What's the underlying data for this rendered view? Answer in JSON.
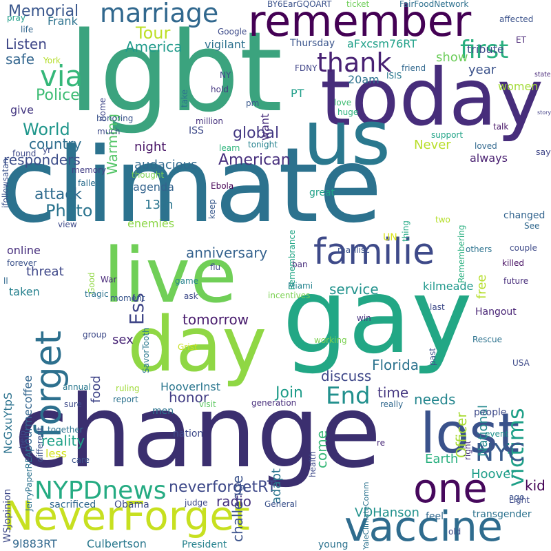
{
  "words": [
    {
      "text": "climate",
      "color": "#2c728e"
    },
    {
      "text": "change",
      "color": "#3b2f6f"
    },
    {
      "text": "lgbt",
      "color": "#3ba37e"
    },
    {
      "text": "gay",
      "color": "#22a785"
    },
    {
      "text": "today",
      "color": "#472d7b"
    },
    {
      "text": "day",
      "color": "#8fd744"
    },
    {
      "text": "live",
      "color": "#70cf57"
    },
    {
      "text": "us",
      "color": "#2a788e"
    },
    {
      "text": "remember",
      "color": "#440154"
    },
    {
      "text": "NeverForget",
      "color": "#c7e020"
    },
    {
      "text": "vaccine",
      "color": "#2f6c8e"
    },
    {
      "text": "lost",
      "color": "#3a528b"
    },
    {
      "text": "familie",
      "color": "#3e4a89"
    },
    {
      "text": "forget",
      "color": "#2d708e"
    },
    {
      "text": "one",
      "color": "#46085c"
    },
    {
      "text": "marriage",
      "color": "#31688e"
    },
    {
      "text": "thank",
      "color": "#482173"
    },
    {
      "text": "via",
      "color": "#35b779"
    },
    {
      "text": "first",
      "color": "#29af7f"
    },
    {
      "text": "NYPDnews",
      "color": "#25ab82"
    },
    {
      "text": "victims",
      "color": "#1fa088"
    },
    {
      "text": "End",
      "color": "#21908d"
    },
    {
      "text": "NYC",
      "color": "#375a8c"
    },
    {
      "text": "neverforgetRT",
      "color": "#3e4989"
    },
    {
      "text": "Ess",
      "color": "#404688"
    },
    {
      "text": "Memorial",
      "color": "#39568c"
    },
    {
      "text": "Tour",
      "color": "#bddf26"
    },
    {
      "text": "America",
      "color": "#1f9a8a"
    },
    {
      "text": "Listen",
      "color": "#3f4788"
    },
    {
      "text": "safe",
      "color": "#32658e"
    },
    {
      "text": "Police",
      "color": "#3dbc74"
    },
    {
      "text": "Warming",
      "color": "#54c568"
    },
    {
      "text": "World",
      "color": "#1f968b"
    },
    {
      "text": "country",
      "color": "#2e6e8e"
    },
    {
      "text": "responders",
      "color": "#3d4e8a"
    },
    {
      "text": "attack",
      "color": "#2f6b8e"
    },
    {
      "text": "Photo",
      "color": "#2b748e"
    },
    {
      "text": "global",
      "color": "#443983"
    },
    {
      "text": "night",
      "color": "#471365"
    },
    {
      "text": "audacious",
      "color": "#306a8e"
    },
    {
      "text": "American",
      "color": "#472f7d"
    },
    {
      "text": "agenda",
      "color": "#33638d"
    },
    {
      "text": "13th",
      "color": "#2b758e"
    },
    {
      "text": "enemies",
      "color": "#8bd646"
    },
    {
      "text": "anniversary",
      "color": "#34618d"
    },
    {
      "text": "service",
      "color": "#20928c"
    },
    {
      "text": "tomorrow",
      "color": "#481b6d"
    },
    {
      "text": "honor",
      "color": "#433e85"
    },
    {
      "text": "sex",
      "color": "#482576"
    },
    {
      "text": "food",
      "color": "#404588"
    },
    {
      "text": "discuss",
      "color": "#3f4889"
    },
    {
      "text": "Florida",
      "color": "#2c738e"
    },
    {
      "text": "HooverInst",
      "color": "#2a768e"
    },
    {
      "text": "Join",
      "color": "#1e9c89"
    },
    {
      "text": "time",
      "color": "#453781"
    },
    {
      "text": "needs",
      "color": "#24868e"
    },
    {
      "text": "come",
      "color": "#37b878"
    },
    {
      "text": "challenge",
      "color": "#3b528b"
    },
    {
      "text": "reality",
      "color": "#1fa187"
    },
    {
      "text": "less",
      "color": "#d2e21b"
    },
    {
      "text": "adapt",
      "color": "#2b758e"
    },
    {
      "text": "radio",
      "color": "#46327e"
    },
    {
      "text": "kid",
      "color": "#440154"
    },
    {
      "text": "Hoover",
      "color": "#1f9e89"
    },
    {
      "text": "Earth",
      "color": "#2ab07f"
    },
    {
      "text": "VDHanson",
      "color": "#21918c"
    },
    {
      "text": "Culbertson",
      "color": "#2a788e"
    },
    {
      "text": "9l883RT",
      "color": "#31688e"
    },
    {
      "text": "Officer",
      "color": "#a8db34"
    },
    {
      "text": "National",
      "color": "#23888e"
    },
    {
      "text": "kilmeade",
      "color": "#1f988b"
    },
    {
      "text": "free",
      "color": "#b5de2b"
    },
    {
      "text": "year",
      "color": "#3b528b"
    },
    {
      "text": "show",
      "color": "#6ccd5a"
    },
    {
      "text": "women",
      "color": "#a2da37"
    },
    {
      "text": "tribute",
      "color": "#3e4a89"
    },
    {
      "text": "PT",
      "color": "#1f9e89"
    },
    {
      "text": "20am",
      "color": "#2c728e"
    },
    {
      "text": "want",
      "color": "#472d7b"
    },
    {
      "text": "always",
      "color": "#481f70"
    },
    {
      "text": "say",
      "color": "#404688"
    },
    {
      "text": "Never",
      "color": "#b8de29"
    },
    {
      "text": "changed",
      "color": "#32648e"
    },
    {
      "text": "threat",
      "color": "#3f4889"
    },
    {
      "text": "taken",
      "color": "#26818e"
    },
    {
      "text": "give",
      "color": "#453882"
    },
    {
      "text": "vigilant",
      "color": "#2d718e"
    },
    {
      "text": "aFxcsm76RT",
      "color": "#1fa088"
    },
    {
      "text": "Thursday",
      "color": "#3a548c"
    },
    {
      "text": "Frank",
      "color": "#2c728e"
    },
    {
      "text": "Google",
      "color": "#3e4c8a"
    },
    {
      "text": "BY6EarGQOART",
      "color": "#3b528b"
    },
    {
      "text": "ticket",
      "color": "#6ece58"
    },
    {
      "text": "FairFoodNetwork",
      "color": "#2d708e"
    },
    {
      "text": "affected",
      "color": "#3b528b"
    },
    {
      "text": "pray",
      "color": "#1f9e89"
    },
    {
      "text": "life",
      "color": "#32658e"
    },
    {
      "text": "ET",
      "color": "#482475"
    },
    {
      "text": "FDNY",
      "color": "#404588"
    },
    {
      "text": "friend",
      "color": "#31688e"
    },
    {
      "text": "ISIS",
      "color": "#2a788e"
    },
    {
      "text": "state",
      "color": "#482878"
    },
    {
      "text": "York",
      "color": "#b5de2b"
    },
    {
      "text": "NY",
      "color": "#3e4989"
    },
    {
      "text": "hold",
      "color": "#453781"
    },
    {
      "text": "pm",
      "color": "#38588c"
    },
    {
      "text": "love",
      "color": "#3fbc73"
    },
    {
      "text": "huge",
      "color": "#2db27d"
    },
    {
      "text": "million",
      "color": "#46327e"
    },
    {
      "text": "ISS",
      "color": "#3e4a89"
    },
    {
      "text": "tonight",
      "color": "#26828e"
    },
    {
      "text": "learn",
      "color": "#2fb47c"
    },
    {
      "text": "talk",
      "color": "#481668"
    },
    {
      "text": "support",
      "color": "#20a386"
    },
    {
      "text": "loved",
      "color": "#31688e"
    },
    {
      "text": "story",
      "color": "#424086"
    },
    {
      "text": "home",
      "color": "#3f4788"
    },
    {
      "text": "take",
      "color": "#2c728e"
    },
    {
      "text": "honoring",
      "color": "#3a538b"
    },
    {
      "text": "much",
      "color": "#3e4a89"
    },
    {
      "text": "thought",
      "color": "#7ad151"
    },
    {
      "text": "memory",
      "color": "#433e85"
    },
    {
      "text": "fallen",
      "color": "#2e6e8e"
    },
    {
      "text": "Ebola",
      "color": "#440154"
    },
    {
      "text": "great",
      "color": "#1fa188"
    },
    {
      "text": "keep",
      "color": "#38598c"
    },
    {
      "text": "Remembrance",
      "color": "#21a685"
    },
    {
      "text": "two",
      "color": "#b5de2b"
    },
    {
      "text": "thing",
      "color": "#22a884"
    },
    {
      "text": "Remembering",
      "color": "#29af7f"
    },
    {
      "text": "See",
      "color": "#31688e"
    },
    {
      "text": "view",
      "color": "#3e4a89"
    },
    {
      "text": "online",
      "color": "#472f7d"
    },
    {
      "text": "forever",
      "color": "#3b528b"
    },
    {
      "text": "Good",
      "color": "#90d743"
    },
    {
      "text": "War",
      "color": "#482878"
    },
    {
      "text": "tragic",
      "color": "#2c728e"
    },
    {
      "text": "moment",
      "color": "#39568c"
    },
    {
      "text": "SavorTooth",
      "color": "#2a788e"
    },
    {
      "text": "game",
      "color": "#26828e"
    },
    {
      "text": "ask",
      "color": "#3e4a89"
    },
    {
      "text": "flu",
      "color": "#3e4a89"
    },
    {
      "text": "Miami",
      "color": "#25838e"
    },
    {
      "text": "incentives",
      "color": "#7ad151"
    },
    {
      "text": "ban",
      "color": "#472d7b"
    },
    {
      "text": "marilisc",
      "color": "#3b528b"
    },
    {
      "text": "UN",
      "color": "#d8e219"
    },
    {
      "text": "others",
      "color": "#2c728e"
    },
    {
      "text": "couple",
      "color": "#3e4a89"
    },
    {
      "text": "killed",
      "color": "#471063"
    },
    {
      "text": "future",
      "color": "#472d7b"
    },
    {
      "text": "last",
      "color": "#3e4a89"
    },
    {
      "text": "win",
      "color": "#46327e"
    },
    {
      "text": "Hangout",
      "color": "#482475"
    },
    {
      "text": "Rescue",
      "color": "#2c728e"
    },
    {
      "text": "past",
      "color": "#3b528b"
    },
    {
      "text": "ll",
      "color": "#31688e"
    },
    {
      "text": "pourmecoffee",
      "color": "#32658e"
    },
    {
      "text": "NcGxuYtpS",
      "color": "#2c728e"
    },
    {
      "text": "group",
      "color": "#3e4a89"
    },
    {
      "text": "WSJopinion",
      "color": "#3e4a89"
    },
    {
      "text": "JerryPaperREAL",
      "color": "#2c728e"
    },
    {
      "text": "different",
      "color": "#3b528b"
    },
    {
      "text": "Grist",
      "color": "#c7e020"
    },
    {
      "text": "working",
      "color": "#7ad151"
    },
    {
      "text": "annual",
      "color": "#2a788e"
    },
    {
      "text": "ruling",
      "color": "#a0da39"
    },
    {
      "text": "report",
      "color": "#2c728e"
    },
    {
      "text": "visit",
      "color": "#5ec962"
    },
    {
      "text": "generation",
      "color": "#472d7b"
    },
    {
      "text": "really",
      "color": "#31688e"
    },
    {
      "text": "sure",
      "color": "#3e4a89"
    },
    {
      "text": "men",
      "color": "#2c728e"
    },
    {
      "text": "help",
      "color": "#3e4a89"
    },
    {
      "text": "nation",
      "color": "#3e4a89"
    },
    {
      "text": "together",
      "color": "#2c728e"
    },
    {
      "text": "care",
      "color": "#3b528b"
    },
    {
      "text": "health",
      "color": "#3e4a89"
    },
    {
      "text": "YaleClimateComm",
      "color": "#2c728e"
    },
    {
      "text": "re",
      "color": "#482878"
    },
    {
      "text": "people",
      "color": "#3e4a89"
    },
    {
      "text": "right",
      "color": "#46327e"
    },
    {
      "text": "event",
      "color": "#21918c"
    },
    {
      "text": "USA",
      "color": "#3e4a89"
    },
    {
      "text": "ago",
      "color": "#3b528b"
    },
    {
      "text": "Light",
      "color": "#3e4a89"
    },
    {
      "text": "transgender",
      "color": "#2c728e"
    },
    {
      "text": "General",
      "color": "#3b528b"
    },
    {
      "text": "judge",
      "color": "#3e4a89"
    },
    {
      "text": "sacrificed",
      "color": "#31688e"
    },
    {
      "text": "Obama",
      "color": "#3e4a89"
    },
    {
      "text": "feel",
      "color": "#31688e"
    },
    {
      "text": "old",
      "color": "#3e4a89"
    },
    {
      "text": "young",
      "color": "#2c728e"
    },
    {
      "text": "President",
      "color": "#26828e"
    },
    {
      "text": "found",
      "color": "#3e4a89"
    },
    {
      "text": "yr",
      "color": "#3e4a89"
    },
    {
      "text": "ifollowsatan",
      "color": "#3b528b"
    }
  ]
}
